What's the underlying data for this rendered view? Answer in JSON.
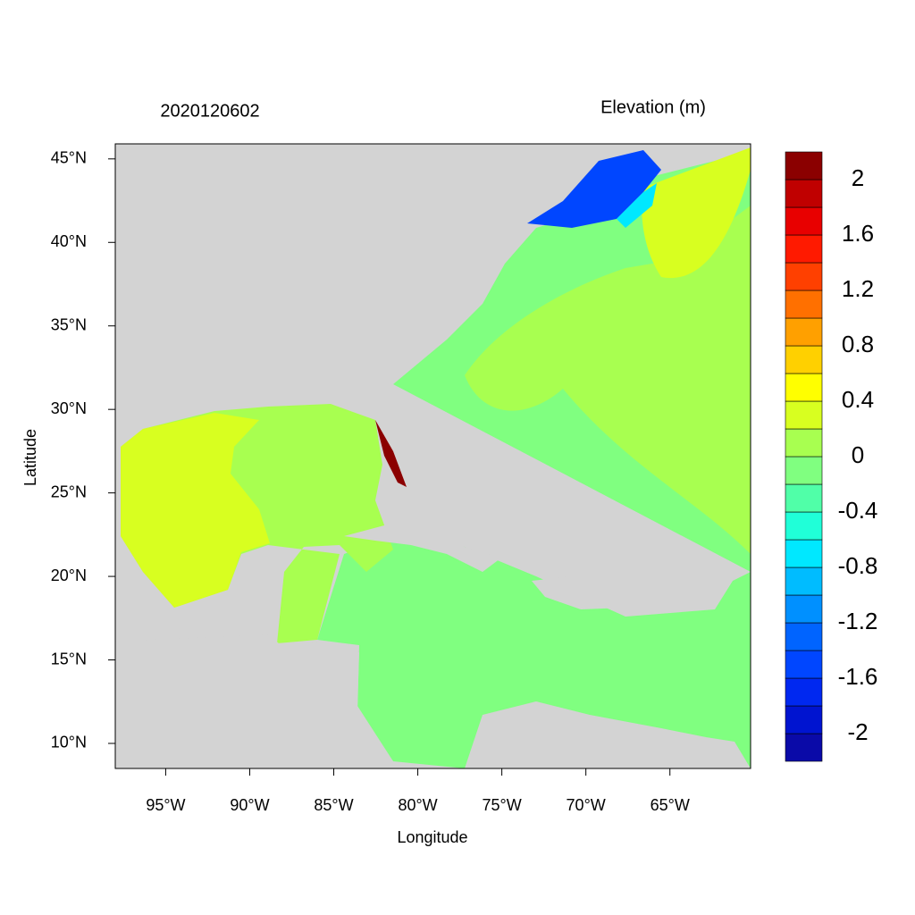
{
  "header": {
    "date": "2020120602",
    "variable": "Elevation (m)"
  },
  "map": {
    "xlabel": "Longitude",
    "ylabel": "Latitude",
    "xlim": [
      -98,
      -60.2
    ],
    "ylim": [
      8.5,
      45.9
    ],
    "xticks": [
      {
        "value": -95,
        "label": "95°W"
      },
      {
        "value": -90,
        "label": "90°W"
      },
      {
        "value": -85,
        "label": "85°W"
      },
      {
        "value": -80,
        "label": "80°W"
      },
      {
        "value": -75,
        "label": "75°W"
      },
      {
        "value": -70,
        "label": "70°W"
      },
      {
        "value": -65,
        "label": "65°W"
      }
    ],
    "yticks": [
      {
        "value": 10,
        "label": "10°N"
      },
      {
        "value": 15,
        "label": "15°N"
      },
      {
        "value": 20,
        "label": "20°N"
      },
      {
        "value": 25,
        "label": "25°N"
      },
      {
        "value": 30,
        "label": "30°N"
      },
      {
        "value": 35,
        "label": "35°N"
      },
      {
        "value": 40,
        "label": "40°N"
      },
      {
        "value": 45,
        "label": "45°N"
      }
    ]
  },
  "colorbar": {
    "levels": [
      -2,
      -1.8,
      -1.6,
      -1.4,
      -1.2,
      -1,
      -0.8,
      -0.6,
      -0.4,
      -0.2,
      0,
      0.2,
      0.4,
      0.6,
      0.8,
      1,
      1.2,
      1.4,
      1.6,
      1.8,
      2
    ],
    "colors": [
      "#0a0aa8",
      "#0014d0",
      "#0028f0",
      "#0046ff",
      "#0064ff",
      "#0090ff",
      "#00bcff",
      "#00e8ff",
      "#20ffd8",
      "#50ffa8",
      "#80ff80",
      "#a8ff50",
      "#d8ff20",
      "#ffff00",
      "#ffd000",
      "#ffa000",
      "#ff7000",
      "#ff4000",
      "#ff1a00",
      "#e80000",
      "#c00000",
      "#8b0000"
    ],
    "ticks": [
      2,
      1.6,
      1.2,
      0.8,
      0.4,
      0,
      -0.4,
      -0.8,
      -1.2,
      -1.6,
      -2
    ]
  }
}
